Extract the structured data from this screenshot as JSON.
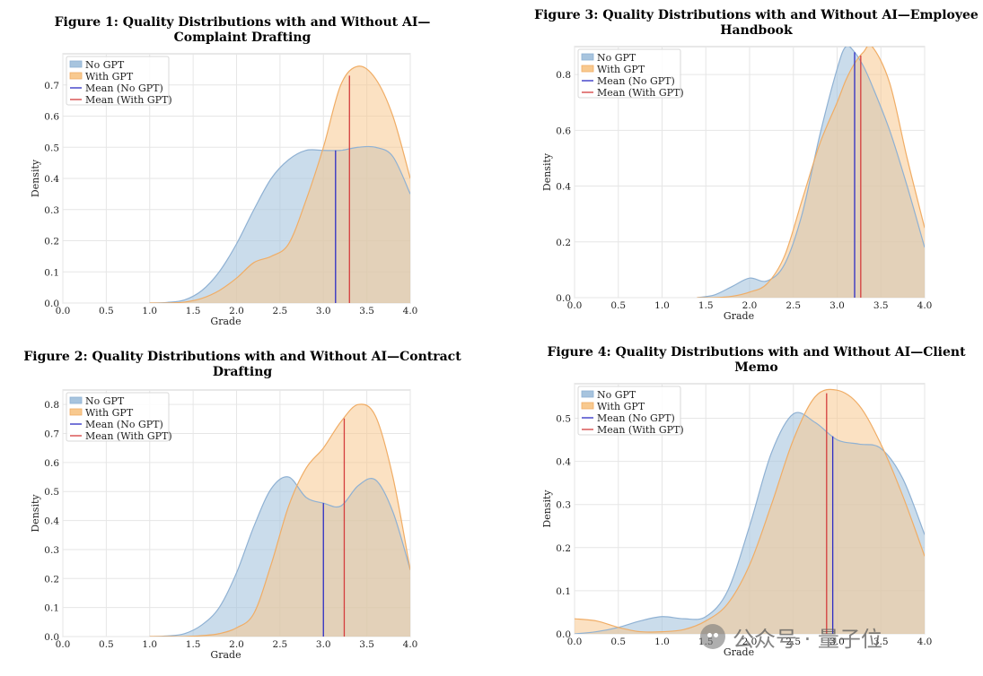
{
  "colors": {
    "no_gpt": "#a7c4de",
    "no_gpt_line": "#8fb1d3",
    "with_gpt": "#f8c98f",
    "with_gpt_line": "#f0ad66",
    "overlap": "#bfb1a0",
    "mean_no_gpt": "#2d2dc4",
    "mean_with_gpt": "#d43d3d",
    "grid": "#e6e6e6"
  },
  "watermark": {
    "text": "公众号 · 量子位",
    "icon": "wechat-icon"
  },
  "chart_data": [
    {
      "type": "area",
      "title": "Figure 1: Quality Distributions with and Without AI—Complaint Drafting",
      "xlabel": "Grade",
      "ylabel": "Density",
      "xlim": [
        0.0,
        4.0
      ],
      "ylim": [
        0.0,
        0.8
      ],
      "xticks": [
        "0.0",
        "0.5",
        "1.0",
        "1.5",
        "2.0",
        "2.5",
        "3.0",
        "3.5",
        "4.0"
      ],
      "yticks": [
        "0.0",
        "0.1",
        "0.2",
        "0.3",
        "0.4",
        "0.5",
        "0.6",
        "0.7"
      ],
      "ytick_values": [
        0,
        0.1,
        0.2,
        0.3,
        0.4,
        0.5,
        0.6,
        0.7
      ],
      "grid": true,
      "legend": "top-left",
      "legend_labels": [
        "No GPT",
        "With GPT",
        "Mean (No GPT)",
        "Mean (With GPT)"
      ],
      "x": [
        1.0,
        1.2,
        1.4,
        1.6,
        1.8,
        2.0,
        2.2,
        2.4,
        2.6,
        2.8,
        3.0,
        3.2,
        3.4,
        3.6,
        3.8,
        4.0
      ],
      "series": [
        {
          "name": "No GPT",
          "values": [
            0.0,
            0.002,
            0.01,
            0.04,
            0.1,
            0.19,
            0.3,
            0.4,
            0.46,
            0.49,
            0.49,
            0.49,
            0.5,
            0.5,
            0.47,
            0.35
          ]
        },
        {
          "name": "With GPT",
          "values": [
            0.0,
            0.0,
            0.003,
            0.015,
            0.04,
            0.08,
            0.13,
            0.15,
            0.19,
            0.33,
            0.5,
            0.7,
            0.76,
            0.72,
            0.6,
            0.4
          ]
        }
      ],
      "means": {
        "no_gpt": 3.14,
        "with_gpt": 3.3
      }
    },
    {
      "type": "area",
      "title": "Figure 2: Quality Distributions with and Without AI—Contract Drafting",
      "xlabel": "Grade",
      "ylabel": "Density",
      "xlim": [
        0.0,
        4.0
      ],
      "ylim": [
        0.0,
        0.85
      ],
      "xticks": [
        "0.0",
        "0.5",
        "1.0",
        "1.5",
        "2.0",
        "2.5",
        "3.0",
        "3.5",
        "4.0"
      ],
      "yticks": [
        "0.0",
        "0.1",
        "0.2",
        "0.3",
        "0.4",
        "0.5",
        "0.6",
        "0.7",
        "0.8"
      ],
      "ytick_values": [
        0,
        0.1,
        0.2,
        0.3,
        0.4,
        0.5,
        0.6,
        0.7,
        0.8
      ],
      "grid": true,
      "legend": "top-left",
      "legend_labels": [
        "No GPT",
        "With GPT",
        "Mean (No GPT)",
        "Mean (With GPT)"
      ],
      "x": [
        1.0,
        1.2,
        1.4,
        1.6,
        1.8,
        2.0,
        2.2,
        2.4,
        2.6,
        2.8,
        3.0,
        3.2,
        3.4,
        3.6,
        3.8,
        4.0
      ],
      "series": [
        {
          "name": "No GPT",
          "values": [
            0.0,
            0.002,
            0.01,
            0.04,
            0.1,
            0.22,
            0.38,
            0.51,
            0.55,
            0.48,
            0.46,
            0.45,
            0.52,
            0.54,
            0.43,
            0.23
          ]
        },
        {
          "name": "With GPT",
          "values": [
            0.0,
            0.0,
            0.0,
            0.003,
            0.01,
            0.03,
            0.08,
            0.25,
            0.45,
            0.58,
            0.65,
            0.74,
            0.8,
            0.76,
            0.55,
            0.23
          ]
        }
      ],
      "means": {
        "no_gpt": 3.0,
        "with_gpt": 3.24
      }
    },
    {
      "type": "area",
      "title": "Figure 3: Quality Distributions with and Without AI—Employee Handbook",
      "xlabel": "Grade",
      "ylabel": "Density",
      "xlim": [
        0.0,
        4.0
      ],
      "ylim": [
        0.0,
        0.9
      ],
      "xticks": [
        "0.0",
        "0.5",
        "1.0",
        "1.5",
        "2.0",
        "2.5",
        "3.0",
        "3.5",
        "4.0"
      ],
      "yticks": [
        "0.0",
        "0.2",
        "0.4",
        "0.6",
        "0.8"
      ],
      "ytick_values": [
        0,
        0.2,
        0.4,
        0.6,
        0.8
      ],
      "grid": true,
      "legend": "top-left",
      "legend_labels": [
        "No GPT",
        "With GPT",
        "Mean (No GPT)",
        "Mean (With GPT)"
      ],
      "x": [
        1.4,
        1.6,
        1.8,
        2.0,
        2.2,
        2.4,
        2.6,
        2.8,
        3.0,
        3.1,
        3.2,
        3.3,
        3.4,
        3.6,
        3.8,
        4.0
      ],
      "series": [
        {
          "name": "No GPT",
          "values": [
            0.0,
            0.01,
            0.04,
            0.07,
            0.06,
            0.12,
            0.3,
            0.58,
            0.82,
            0.9,
            0.88,
            0.83,
            0.76,
            0.6,
            0.4,
            0.18
          ]
        },
        {
          "name": "With GPT",
          "values": [
            0.0,
            0.0,
            0.005,
            0.02,
            0.05,
            0.15,
            0.35,
            0.55,
            0.7,
            0.78,
            0.84,
            0.88,
            0.9,
            0.77,
            0.5,
            0.25
          ]
        }
      ],
      "means": {
        "no_gpt": 3.2,
        "with_gpt": 3.27
      }
    },
    {
      "type": "area",
      "title": "Figure 4: Quality Distributions with and Without AI—Client Memo",
      "xlabel": "Grade",
      "ylabel": "Density",
      "xlim": [
        0.0,
        4.0
      ],
      "ylim": [
        0.0,
        0.58
      ],
      "xticks": [
        "0.0",
        "0.5",
        "1.0",
        "1.5",
        "2.0",
        "2.5",
        "3.0",
        "3.5",
        "4.0"
      ],
      "yticks": [
        "0.0",
        "0.1",
        "0.2",
        "0.3",
        "0.4",
        "0.5"
      ],
      "ytick_values": [
        0,
        0.1,
        0.2,
        0.3,
        0.4,
        0.5
      ],
      "grid": true,
      "legend": "top-left",
      "legend_labels": [
        "No GPT",
        "With GPT",
        "Mean (No GPT)",
        "Mean (With GPT)"
      ],
      "x": [
        0.0,
        0.25,
        0.5,
        0.75,
        1.0,
        1.25,
        1.5,
        1.75,
        2.0,
        2.25,
        2.5,
        2.75,
        3.0,
        3.25,
        3.5,
        3.75,
        4.0
      ],
      "series": [
        {
          "name": "No GPT",
          "values": [
            0.0,
            0.005,
            0.015,
            0.03,
            0.04,
            0.035,
            0.04,
            0.1,
            0.25,
            0.42,
            0.51,
            0.49,
            0.45,
            0.44,
            0.43,
            0.36,
            0.23
          ]
        },
        {
          "name": "With GPT",
          "values": [
            0.035,
            0.03,
            0.015,
            0.005,
            0.005,
            0.01,
            0.03,
            0.07,
            0.16,
            0.3,
            0.45,
            0.55,
            0.565,
            0.53,
            0.44,
            0.32,
            0.18
          ]
        }
      ],
      "means": {
        "no_gpt": 2.95,
        "with_gpt": 2.88
      }
    }
  ]
}
